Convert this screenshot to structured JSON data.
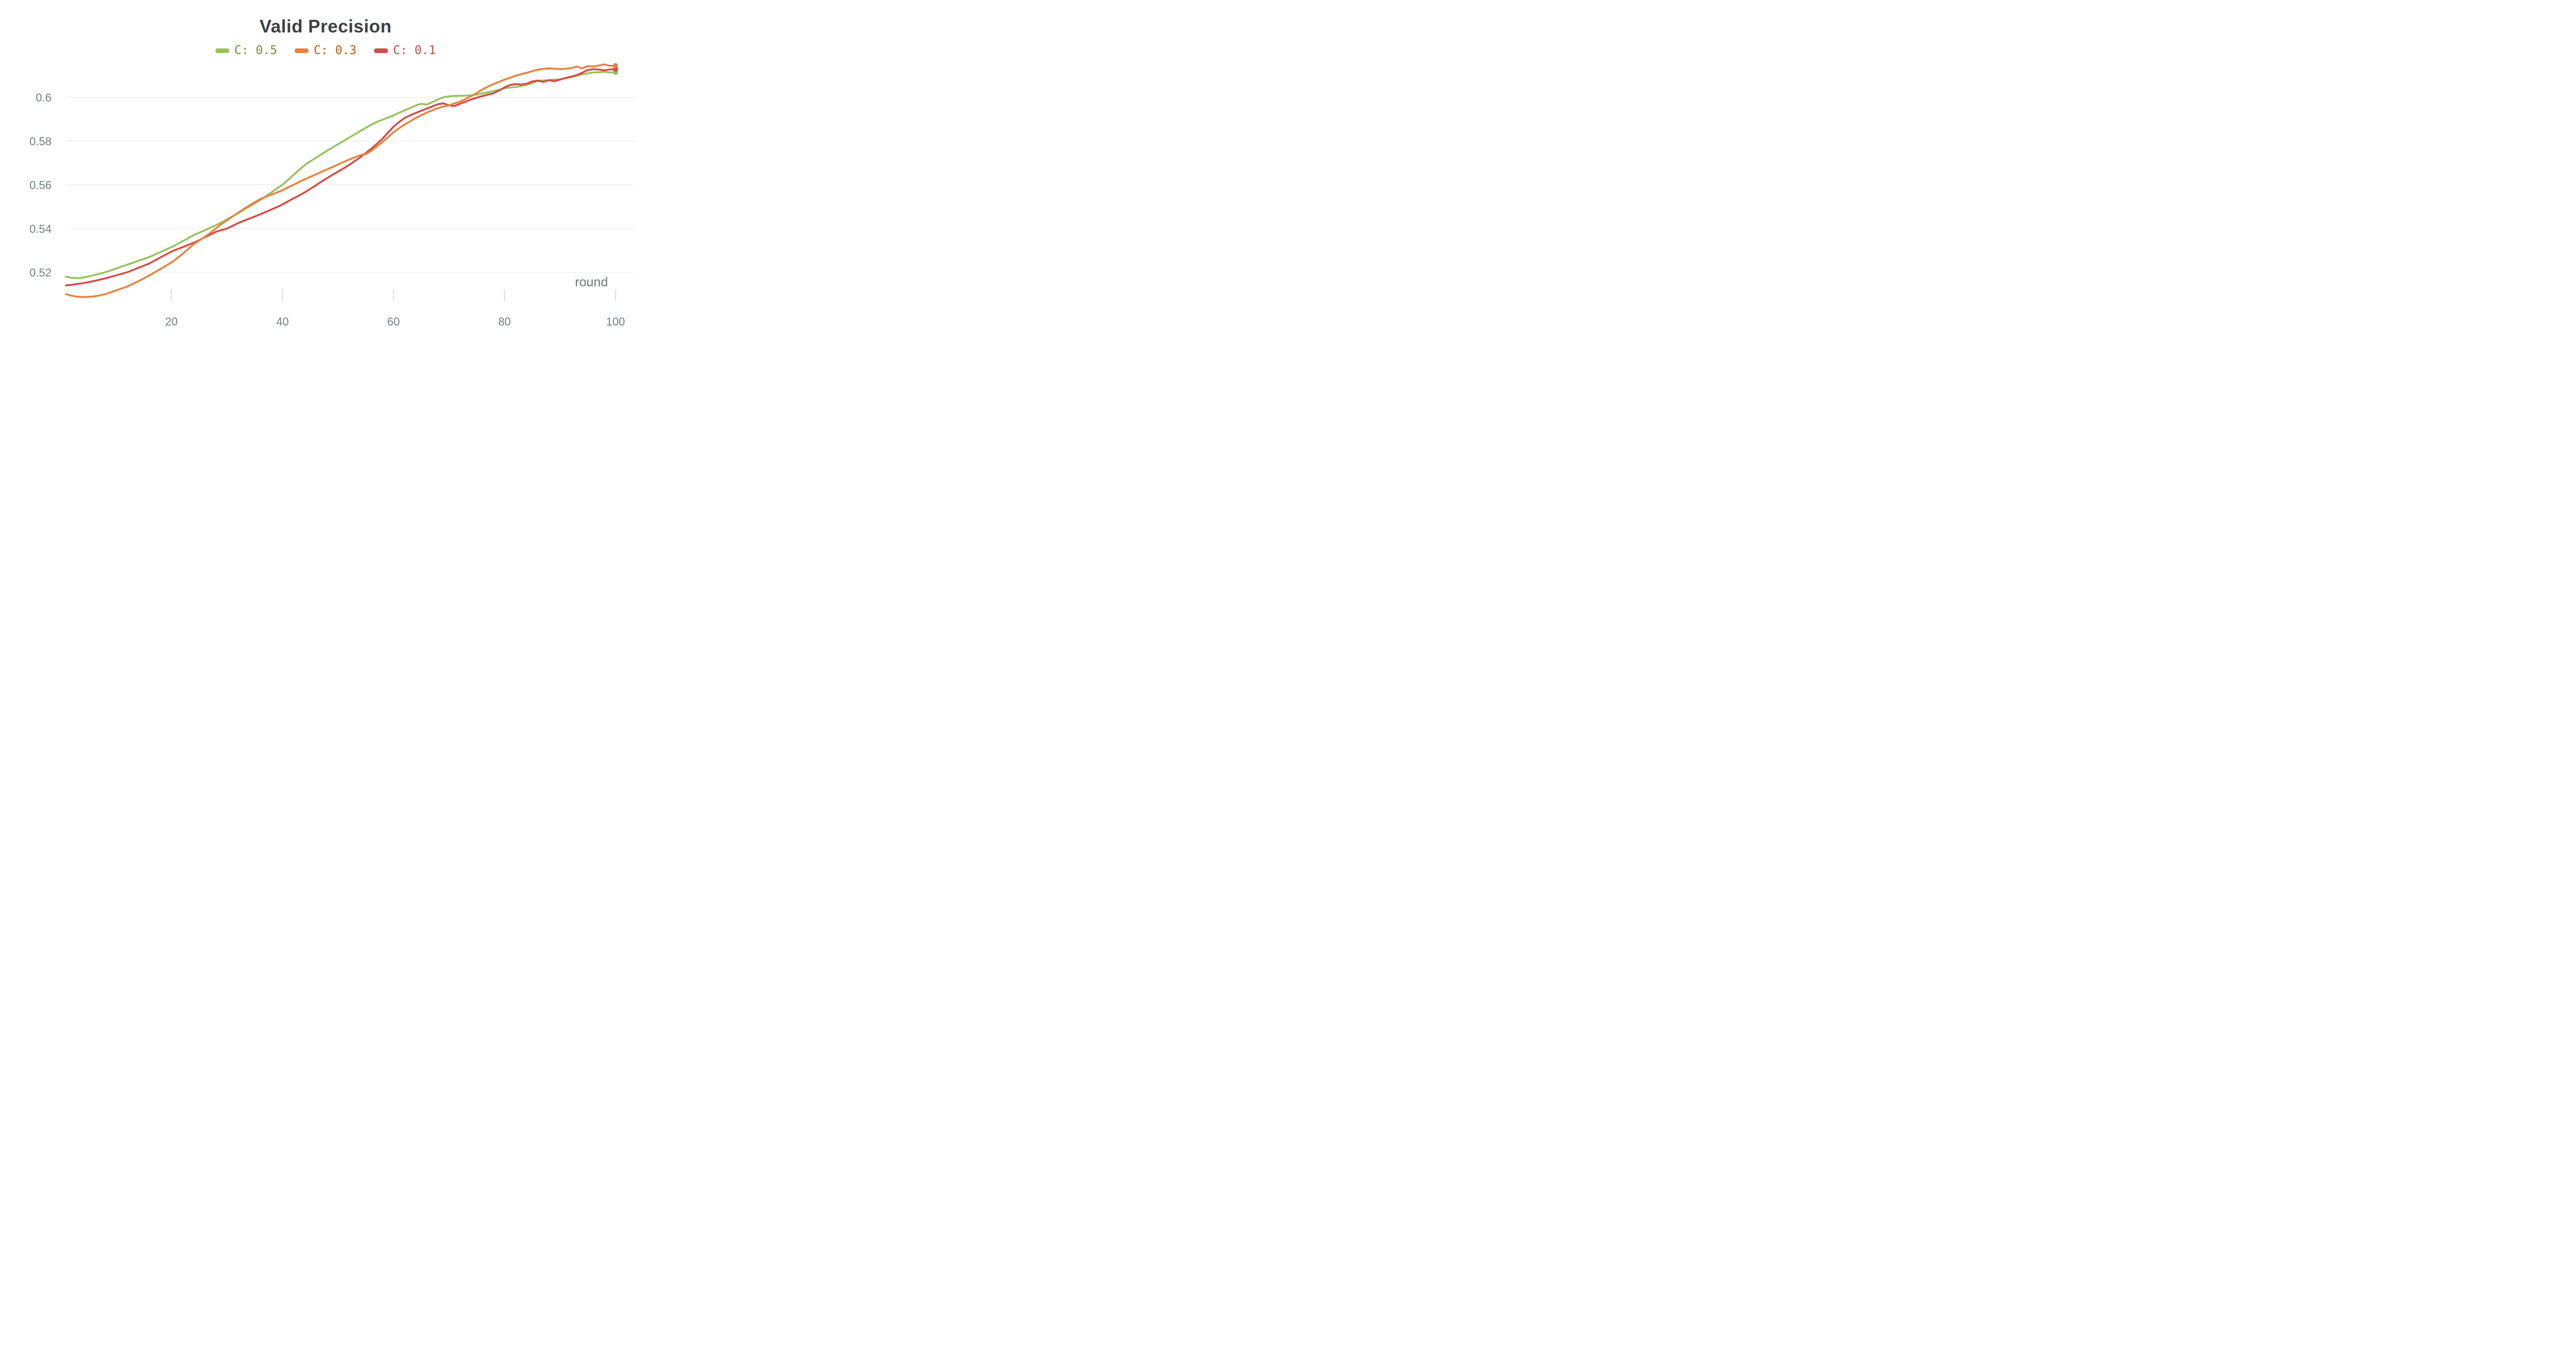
{
  "title": "Valid Precision",
  "colors": {
    "background": "#ffffff",
    "title_text": "#3a4045",
    "tick_text": "#767b85",
    "axis_name_text": "#6f7480",
    "gridline": "#ececec",
    "tick_mark": "#e2e2e2"
  },
  "chart_data": {
    "type": "line",
    "title": "Valid Precision",
    "xlabel": "round",
    "ylabel": "",
    "x_start": 1,
    "x_step": 1,
    "xlim": [
      1,
      100
    ],
    "ylim": [
      0.508,
      0.617
    ],
    "x_ticks": [
      "20",
      "40",
      "60",
      "80",
      "100"
    ],
    "x_tick_values": [
      20,
      40,
      60,
      80,
      100
    ],
    "y_ticks": [
      "0.6",
      "0.58",
      "0.56",
      "0.54",
      "0.52"
    ],
    "y_tick_values": [
      0.6,
      0.58,
      0.56,
      0.54,
      0.52
    ],
    "grid": true,
    "legend_position": "top-center",
    "end_dots": true,
    "series": [
      {
        "name": "C: 0.5",
        "line_color": "#97c15c",
        "label_color": "#6f9132",
        "values": [
          0.518,
          0.5175,
          0.5173,
          0.5176,
          0.5181,
          0.5187,
          0.5193,
          0.52,
          0.5208,
          0.5217,
          0.5226,
          0.5235,
          0.5243,
          0.5252,
          0.5261,
          0.527,
          0.5281,
          0.5292,
          0.5304,
          0.5315,
          0.5328,
          0.5342,
          0.5356,
          0.537,
          0.5381,
          0.5392,
          0.5404,
          0.5415,
          0.5428,
          0.5442,
          0.5456,
          0.547,
          0.5485,
          0.55,
          0.5515,
          0.553,
          0.5548,
          0.5565,
          0.5583,
          0.56,
          0.5622,
          0.5645,
          0.5668,
          0.569,
          0.5707,
          0.5723,
          0.5739,
          0.5755,
          0.577,
          0.5785,
          0.58,
          0.5815,
          0.583,
          0.5845,
          0.586,
          0.5875,
          0.5887,
          0.5897,
          0.5907,
          0.5917,
          0.5929,
          0.594,
          0.5951,
          0.5962,
          0.597,
          0.5966,
          0.5978,
          0.599,
          0.6,
          0.6004,
          0.6006,
          0.6007,
          0.6007,
          0.6009,
          0.6012,
          0.6017,
          0.6022,
          0.6028,
          0.6034,
          0.6041,
          0.6044,
          0.6047,
          0.6051,
          0.6056,
          0.6064,
          0.6075,
          0.6076,
          0.6078,
          0.608,
          0.6082,
          0.6087,
          0.6092,
          0.6098,
          0.6104,
          0.6109,
          0.6113,
          0.6114,
          0.6116,
          0.6113,
          0.6114
        ]
      },
      {
        "name": "C: 0.3",
        "line_color": "#e8823e",
        "label_color": "#bc5b14",
        "values": [
          0.51,
          0.5093,
          0.5089,
          0.5087,
          0.5088,
          0.509,
          0.5094,
          0.51,
          0.5108,
          0.5117,
          0.5126,
          0.5135,
          0.5147,
          0.5159,
          0.5172,
          0.5185,
          0.52,
          0.5215,
          0.523,
          0.5245,
          0.5264,
          0.5284,
          0.5306,
          0.5328,
          0.5345,
          0.5362,
          0.538,
          0.54,
          0.542,
          0.5438,
          0.5455,
          0.5472,
          0.5489,
          0.5505,
          0.552,
          0.5535,
          0.5545,
          0.5555,
          0.5565,
          0.5575,
          0.5588,
          0.56,
          0.5613,
          0.5625,
          0.5636,
          0.5647,
          0.5659,
          0.567,
          0.5681,
          0.5692,
          0.5704,
          0.5715,
          0.5725,
          0.5735,
          0.574,
          0.5755,
          0.5775,
          0.5795,
          0.5817,
          0.584,
          0.5858,
          0.5875,
          0.589,
          0.5905,
          0.5918,
          0.593,
          0.594,
          0.595,
          0.5957,
          0.5963,
          0.5972,
          0.598,
          0.5992,
          0.6005,
          0.602,
          0.6035,
          0.6048,
          0.606,
          0.607,
          0.608,
          0.6089,
          0.6098,
          0.6105,
          0.6112,
          0.6119,
          0.6126,
          0.6129,
          0.6132,
          0.613,
          0.6128,
          0.613,
          0.6133,
          0.614,
          0.6132,
          0.6142,
          0.614,
          0.6145,
          0.615,
          0.6143,
          0.6144
        ]
      },
      {
        "name": "C: 0.1",
        "line_color": "#d54b47",
        "label_color": "#cf4a45",
        "values": [
          0.514,
          0.5143,
          0.5147,
          0.515,
          0.5155,
          0.516,
          0.5166,
          0.5172,
          0.5179,
          0.5186,
          0.5193,
          0.52,
          0.521,
          0.522,
          0.523,
          0.524,
          0.5254,
          0.5268,
          0.5281,
          0.5295,
          0.5305,
          0.5315,
          0.5325,
          0.5335,
          0.5347,
          0.536,
          0.5372,
          0.5385,
          0.5393,
          0.54,
          0.5412,
          0.5425,
          0.5435,
          0.5445,
          0.5455,
          0.5465,
          0.5476,
          0.5487,
          0.5498,
          0.551,
          0.5524,
          0.5538,
          0.5551,
          0.5565,
          0.5581,
          0.5597,
          0.5614,
          0.563,
          0.5645,
          0.566,
          0.5675,
          0.569,
          0.5708,
          0.5725,
          0.5745,
          0.5765,
          0.5787,
          0.581,
          0.5838,
          0.5865,
          0.5886,
          0.5905,
          0.5917,
          0.5928,
          0.5938,
          0.5948,
          0.5958,
          0.5968,
          0.5972,
          0.5963,
          0.596,
          0.597,
          0.598,
          0.599,
          0.5998,
          0.6005,
          0.6012,
          0.6018,
          0.603,
          0.6045,
          0.6056,
          0.606,
          0.6058,
          0.6062,
          0.6072,
          0.6076,
          0.607,
          0.6078,
          0.6073,
          0.608,
          0.6088,
          0.6094,
          0.6101,
          0.6112,
          0.6124,
          0.6128,
          0.6126,
          0.6123,
          0.6127,
          0.6128
        ]
      }
    ]
  }
}
